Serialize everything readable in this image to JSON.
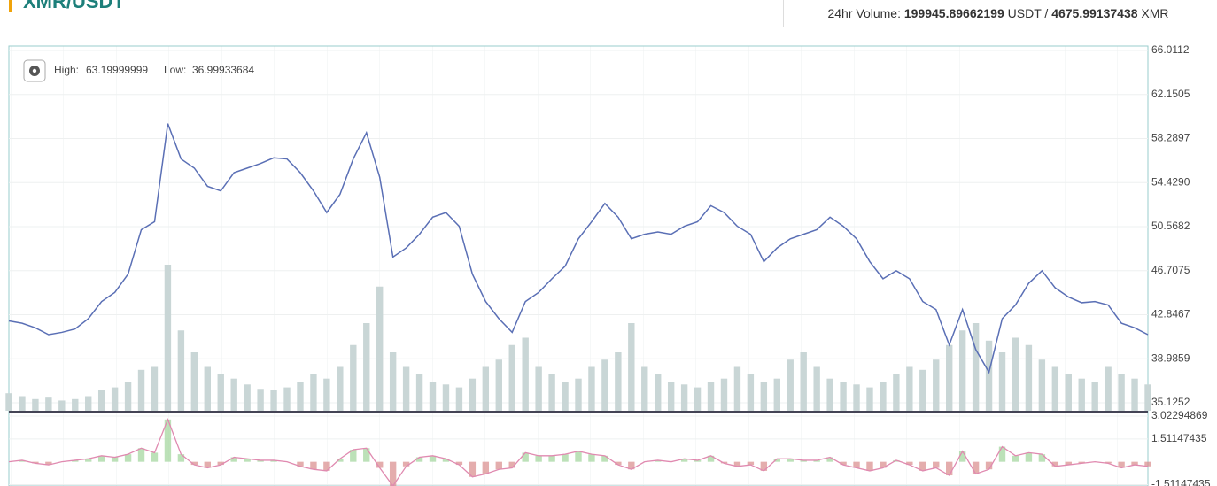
{
  "header": {
    "pair": "XMR/USDT",
    "volume_label": "24hr Volume:",
    "volume_usdt": "199945.89662199",
    "usdt": "USDT /",
    "volume_xmr": "4675.99137438",
    "xmr": "XMR"
  },
  "chart_data": {
    "type": "line",
    "high_label": "High:",
    "high": 63.19999999,
    "low_label": "Low:",
    "low": 36.99933684,
    "color": "#5a6fb5",
    "values": [
      42.3,
      42.1,
      41.7,
      41.1,
      41.3,
      41.6,
      42.5,
      44.0,
      44.8,
      46.4,
      50.3,
      51.0,
      59.6,
      56.5,
      55.7,
      54.1,
      53.7,
      55.3,
      55.7,
      56.1,
      56.6,
      56.5,
      55.3,
      53.7,
      51.8,
      53.4,
      56.5,
      58.8,
      54.9,
      47.9,
      48.7,
      49.9,
      51.4,
      51.8,
      50.6,
      46.4,
      44.0,
      42.5,
      41.3,
      44.0,
      44.8,
      46.0,
      47.1,
      49.5,
      51.0,
      52.6,
      51.4,
      49.5,
      49.9,
      50.1,
      49.9,
      50.6,
      51.0,
      52.4,
      51.8,
      50.6,
      49.9,
      47.5,
      48.7,
      49.5,
      49.9,
      50.3,
      51.4,
      50.6,
      49.5,
      47.5,
      46.0,
      46.7,
      46.0,
      44.0,
      43.3,
      40.2,
      43.3,
      39.8,
      37.8,
      42.5,
      43.7,
      45.6,
      46.7,
      45.2,
      44.4,
      43.9,
      44.0,
      43.7,
      42.1,
      41.7,
      41.1
    ],
    "volume_color": "#c9d6d6",
    "volume": [
      12,
      10,
      8,
      9,
      7,
      8,
      10,
      14,
      16,
      20,
      28,
      30,
      100,
      55,
      40,
      30,
      25,
      22,
      18,
      15,
      14,
      16,
      20,
      25,
      22,
      30,
      45,
      60,
      85,
      40,
      30,
      25,
      20,
      18,
      16,
      22,
      30,
      35,
      45,
      50,
      30,
      25,
      20,
      22,
      30,
      35,
      40,
      60,
      30,
      25,
      20,
      18,
      16,
      20,
      22,
      30,
      25,
      20,
      22,
      35,
      40,
      30,
      22,
      20,
      18,
      16,
      20,
      25,
      30,
      28,
      35,
      45,
      55,
      60,
      48,
      40,
      50,
      45,
      35,
      30,
      25,
      22,
      20,
      30,
      25,
      22,
      18
    ],
    "ylim": [
      35.1252,
      66.0112
    ],
    "yticks": [
      35.1252,
      38.9859,
      42.8467,
      46.7075,
      50.5682,
      {
        "value": 54.429,
        "label": "54.4290"
      },
      58.2897,
      62.1505,
      66.0112
    ],
    "macd_color": "#e08ab0",
    "macd": [
      0,
      0.1,
      -0.1,
      -0.2,
      0,
      0.1,
      0.2,
      0.4,
      0.3,
      0.5,
      0.9,
      0.6,
      2.8,
      0.5,
      -0.2,
      -0.4,
      -0.2,
      0.3,
      0.2,
      0.1,
      0.1,
      0,
      -0.3,
      -0.5,
      -0.6,
      0.2,
      0.8,
      0.9,
      -0.4,
      -1.6,
      -0.3,
      0.3,
      0.4,
      0.2,
      -0.2,
      -1.0,
      -0.8,
      -0.5,
      -0.4,
      0.6,
      0.4,
      0.4,
      0.5,
      0.7,
      0.5,
      0.4,
      -0.2,
      -0.5,
      0,
      0.1,
      0,
      0.2,
      0.1,
      0.4,
      -0.1,
      -0.3,
      -0.2,
      -0.6,
      0.2,
      0.2,
      0.1,
      0.1,
      0.3,
      -0.2,
      -0.4,
      -0.6,
      -0.4,
      0.1,
      -0.2,
      -0.6,
      -0.4,
      -0.9,
      0.7,
      -0.8,
      -0.5,
      1.0,
      0.4,
      0.6,
      0.5,
      -0.3,
      -0.2,
      -0.1,
      0,
      -0.1,
      -0.4,
      -0.2,
      -0.3
    ],
    "y2lim": [
      -1.6,
      3.02294869
    ],
    "y2ticks": [
      3.02294869,
      1.51147435,
      -1.51147435
    ],
    "grid": true
  }
}
